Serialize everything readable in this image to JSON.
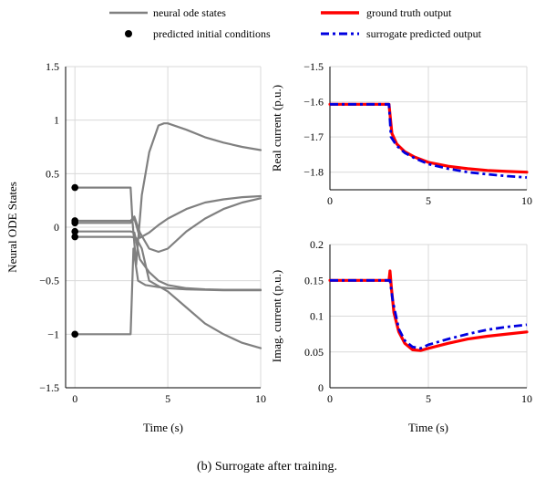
{
  "caption": "(b) Surrogate after training.",
  "legend": {
    "neural": "neural ode states",
    "initial": "predicted initial conditions",
    "truth": "ground truth output",
    "surrogate": "surrogate predicted output"
  },
  "colors": {
    "neural": "#808080",
    "initial": "#000000",
    "truth": "#ff0000",
    "surrogate": "#0000e0",
    "grid": "#d9d9d9"
  },
  "chart_data": [
    {
      "type": "line",
      "xlabel": "Time (s)",
      "ylabel": "Neural ODE States",
      "xlim": [
        -0.5,
        10
      ],
      "ylim": [
        -1.5,
        1.5
      ],
      "xticks": [
        0,
        5,
        10
      ],
      "yticks": [
        -1.5,
        -1,
        -0.5,
        0,
        0.5,
        1,
        1.5
      ],
      "xtick_labels": [
        "0",
        "5",
        "10"
      ],
      "ytick_labels": [
        "−1.5",
        "−1",
        "−0.5",
        "0",
        "0.5",
        "1",
        "1.5"
      ],
      "grid": true,
      "series": [
        {
          "name": "neural ode states",
          "x": [
            0,
            3.0,
            3.1,
            3.3,
            3.6,
            4.0,
            4.5,
            4.8,
            5.0,
            6.0,
            7.0,
            8.0,
            9.0,
            10.0
          ],
          "y": [
            0.37,
            0.37,
            0.05,
            -0.35,
            0.3,
            0.7,
            0.95,
            0.97,
            0.97,
            0.91,
            0.84,
            0.79,
            0.75,
            0.72
          ]
        },
        {
          "name": "neural ode states",
          "x": [
            0,
            3.0,
            3.2,
            3.5,
            4.0,
            4.5,
            5.0,
            6.0,
            7.0,
            8.0,
            9.0,
            10.0
          ],
          "y": [
            0.06,
            0.06,
            0.1,
            -0.05,
            -0.2,
            -0.23,
            -0.2,
            -0.04,
            0.08,
            0.17,
            0.23,
            0.27
          ]
        },
        {
          "name": "neural ode states",
          "x": [
            0,
            3.0,
            3.2,
            3.5,
            4.0,
            4.5,
            5.0,
            6.0,
            7.0,
            8.0,
            9.0,
            10.0
          ],
          "y": [
            0.04,
            0.04,
            0.08,
            -0.1,
            -0.05,
            0.02,
            0.08,
            0.17,
            0.23,
            0.26,
            0.28,
            0.29
          ]
        },
        {
          "name": "neural ode states",
          "x": [
            0,
            3.0,
            3.2,
            3.5,
            4.0,
            4.5,
            5.0,
            6.0,
            7.0,
            8.0,
            9.0,
            10.0
          ],
          "y": [
            -0.04,
            -0.04,
            -0.05,
            -0.3,
            -0.42,
            -0.5,
            -0.54,
            -0.57,
            -0.58,
            -0.585,
            -0.585,
            -0.585
          ]
        },
        {
          "name": "neural ode states",
          "x": [
            0,
            3.0,
            3.3,
            3.6,
            4.0,
            5.0,
            6.0,
            7.0,
            8.0,
            9.0,
            10.0
          ],
          "y": [
            -0.09,
            -0.09,
            -0.1,
            -0.2,
            -0.5,
            -0.6,
            -0.75,
            -0.9,
            -1.0,
            -1.08,
            -1.13
          ]
        },
        {
          "name": "neural ode states",
          "x": [
            0,
            3.0,
            3.15,
            3.4,
            3.8,
            4.5,
            5.0,
            6.0,
            7.0,
            8.0,
            9.0,
            10.0
          ],
          "y": [
            -1.0,
            -1.0,
            -0.2,
            -0.5,
            -0.54,
            -0.56,
            -0.57,
            -0.58,
            -0.585,
            -0.59,
            -0.59,
            -0.59
          ]
        }
      ],
      "points": {
        "name": "predicted initial conditions",
        "x": [
          0,
          0,
          0,
          0,
          0,
          0
        ],
        "y": [
          0.37,
          0.06,
          0.04,
          -0.04,
          -0.09,
          -1.0
        ]
      }
    },
    {
      "type": "line",
      "xlabel": "",
      "ylabel": "Real current (p.u.)",
      "xlim": [
        0,
        10
      ],
      "ylim": [
        -1.85,
        -1.5
      ],
      "xticks": [
        0,
        5,
        10
      ],
      "yticks": [
        -1.5,
        -1.6,
        -1.7,
        -1.8
      ],
      "xtick_labels": [
        "0",
        "5",
        "10"
      ],
      "ytick_labels": [
        "−1.5",
        "−1.6",
        "−1.7",
        "−1.8"
      ],
      "grid": true,
      "series": [
        {
          "name": "ground truth output",
          "x": [
            0,
            3.0,
            3.15,
            3.4,
            3.8,
            4.3,
            5.0,
            6.0,
            7.0,
            8.0,
            9.0,
            10.0
          ],
          "y": [
            -1.607,
            -1.607,
            -1.69,
            -1.72,
            -1.742,
            -1.757,
            -1.772,
            -1.783,
            -1.79,
            -1.795,
            -1.798,
            -1.8
          ]
        },
        {
          "name": "surrogate predicted output",
          "x": [
            0,
            3.0,
            3.1,
            3.4,
            3.8,
            4.3,
            5.0,
            6.0,
            7.0,
            8.0,
            9.0,
            10.0
          ],
          "y": [
            -1.607,
            -1.607,
            -1.7,
            -1.725,
            -1.745,
            -1.76,
            -1.777,
            -1.79,
            -1.8,
            -1.806,
            -1.811,
            -1.815
          ]
        }
      ]
    },
    {
      "type": "line",
      "xlabel": "Time (s)",
      "ylabel": "Imag. current (p.u.)",
      "xlim": [
        0,
        10
      ],
      "ylim": [
        0,
        0.2
      ],
      "xticks": [
        0,
        5,
        10
      ],
      "yticks": [
        0,
        0.05,
        0.1,
        0.15,
        0.2
      ],
      "xtick_labels": [
        "0",
        "5",
        "10"
      ],
      "ytick_labels": [
        "0",
        "0.05",
        "0.1",
        "0.15",
        "0.2"
      ],
      "grid": true,
      "series": [
        {
          "name": "ground truth output",
          "x": [
            0,
            3.0,
            3.05,
            3.12,
            3.25,
            3.5,
            3.8,
            4.2,
            4.6,
            5.0,
            6.0,
            7.0,
            8.0,
            9.0,
            10.0
          ],
          "y": [
            0.15,
            0.15,
            0.163,
            0.14,
            0.105,
            0.078,
            0.062,
            0.053,
            0.052,
            0.055,
            0.062,
            0.068,
            0.072,
            0.075,
            0.078
          ]
        },
        {
          "name": "surrogate predicted output",
          "x": [
            0,
            3.0,
            3.05,
            3.2,
            3.5,
            3.8,
            4.2,
            4.6,
            5.0,
            6.0,
            7.0,
            8.0,
            9.0,
            10.0
          ],
          "y": [
            0.15,
            0.15,
            0.15,
            0.12,
            0.082,
            0.066,
            0.057,
            0.055,
            0.06,
            0.068,
            0.075,
            0.081,
            0.085,
            0.088
          ]
        }
      ]
    }
  ]
}
